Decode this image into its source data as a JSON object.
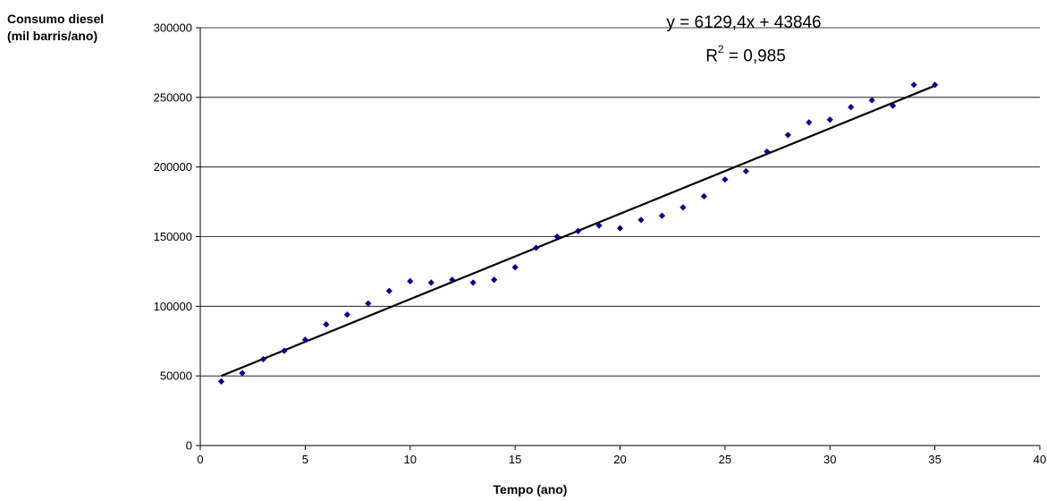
{
  "chart_data": {
    "type": "scatter",
    "xlabel": "Tempo (ano)",
    "ylabel": "Consumo diesel (mil barris/ano)",
    "xlim": [
      0,
      40
    ],
    "ylim": [
      0,
      300000
    ],
    "x_ticks": [
      "0",
      "5",
      "10",
      "15",
      "20",
      "25",
      "30",
      "35",
      "40"
    ],
    "y_ticks": [
      "0",
      "50000",
      "100000",
      "150000",
      "200000",
      "250000",
      "300000"
    ],
    "grid": "horizontal",
    "marker_color": "#00008B",
    "trendline_color": "#000000",
    "points": [
      [
        1,
        46000
      ],
      [
        2,
        52000
      ],
      [
        3,
        62000
      ],
      [
        4,
        68000
      ],
      [
        5,
        76000
      ],
      [
        6,
        87000
      ],
      [
        7,
        94000
      ],
      [
        8,
        102000
      ],
      [
        9,
        111000
      ],
      [
        10,
        118000
      ],
      [
        11,
        117000
      ],
      [
        12,
        119000
      ],
      [
        13,
        117000
      ],
      [
        14,
        119000
      ],
      [
        15,
        128000
      ],
      [
        16,
        142000
      ],
      [
        17,
        150000
      ],
      [
        18,
        154000
      ],
      [
        19,
        158000
      ],
      [
        20,
        156000
      ],
      [
        21,
        162000
      ],
      [
        22,
        165000
      ],
      [
        23,
        171000
      ],
      [
        24,
        179000
      ],
      [
        25,
        191000
      ],
      [
        26,
        197000
      ],
      [
        27,
        211000
      ],
      [
        28,
        223000
      ],
      [
        29,
        232000
      ],
      [
        30,
        234000
      ],
      [
        31,
        243000
      ],
      [
        32,
        248000
      ],
      [
        33,
        244000
      ],
      [
        34,
        259000
      ],
      [
        35,
        259000
      ]
    ],
    "trendline": {
      "slope": 6129.4,
      "intercept": 43846,
      "x_range": [
        1,
        35
      ]
    },
    "equation": "y = 6129,4x + 43846",
    "r2_prefix": "R",
    "r2_suffix": " = 0,985"
  }
}
